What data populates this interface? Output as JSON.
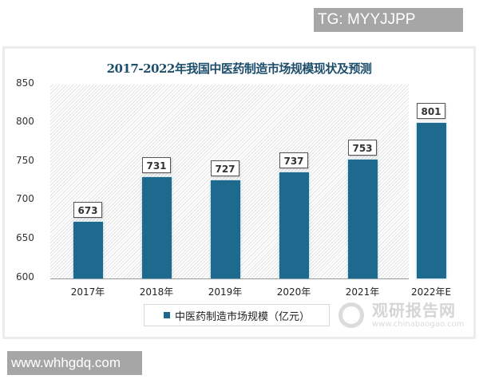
{
  "overlays": {
    "tag": "TG: MYYJJPP",
    "site": "www.whhgdq.com"
  },
  "watermark": {
    "text": "观研报告网",
    "sub": "www.chinabaogao.com"
  },
  "chart_data": {
    "type": "bar",
    "title": "2017-2022年我国中医药制造市场规模现状及预测",
    "categories": [
      "2017年",
      "2018年",
      "2019年",
      "2020年",
      "2021年",
      "2022年E"
    ],
    "series": [
      {
        "name": "中医药制造市场规模（亿元）",
        "values": [
          673,
          731,
          727,
          737,
          753,
          801
        ],
        "color": "#1d6a8e"
      }
    ],
    "value_labels": [
      "673",
      "731",
      "727",
      "737",
      "753",
      "801"
    ],
    "xlabel": "",
    "ylabel": "",
    "ylim": [
      600,
      850
    ],
    "yticks": [
      "850",
      "800",
      "750",
      "700",
      "650",
      "600"
    ],
    "grid": false,
    "legend_position": "bottom",
    "legend": [
      "中医药制造市场规模（亿元）"
    ]
  }
}
